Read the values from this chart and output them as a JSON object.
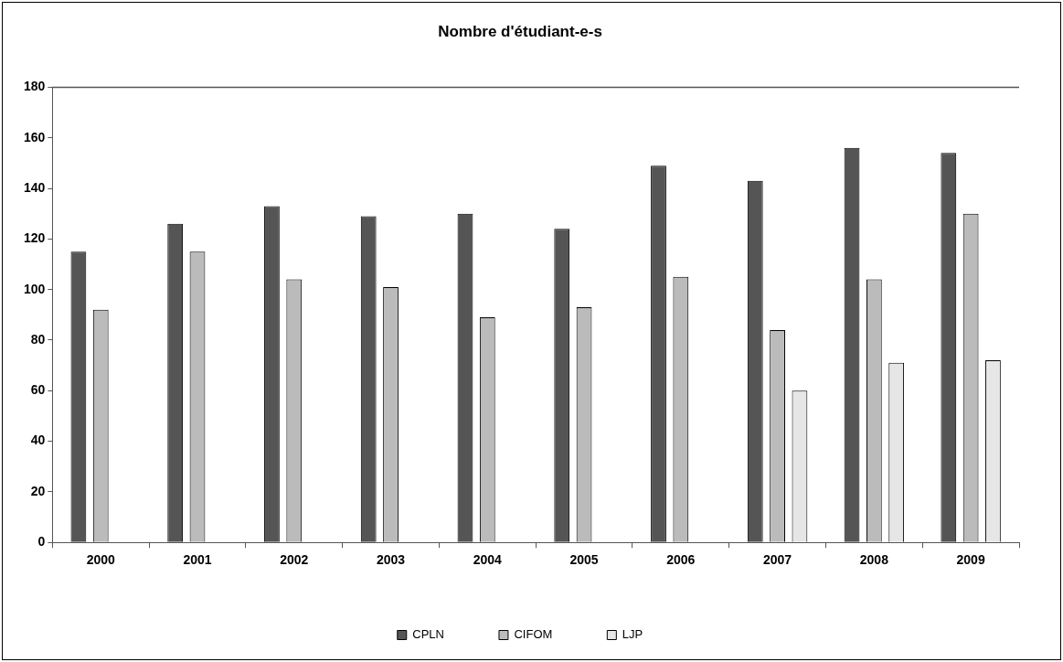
{
  "chart_data": {
    "type": "bar",
    "title": "Nombre d'étudiant-e-s",
    "categories": [
      "2000",
      "2001",
      "2002",
      "2003",
      "2004",
      "2005",
      "2006",
      "2007",
      "2008",
      "2009"
    ],
    "series": [
      {
        "name": "CPLN",
        "color": "#555555",
        "values": [
          115,
          126,
          133,
          129,
          130,
          124,
          149,
          143,
          156,
          154
        ]
      },
      {
        "name": "CIFOM",
        "color": "#bbbbbb",
        "values": [
          92,
          115,
          104,
          101,
          89,
          93,
          105,
          84,
          104,
          130
        ]
      },
      {
        "name": "LJP",
        "color": "#e6e6e6",
        "values": [
          null,
          null,
          null,
          null,
          null,
          null,
          null,
          60,
          71,
          72
        ]
      }
    ],
    "ylim": [
      0,
      180
    ],
    "yticks": [
      0,
      20,
      40,
      60,
      80,
      100,
      120,
      140,
      160,
      180
    ],
    "ref_lines": [
      {
        "axis": "y",
        "value": 180,
        "color": "#555555"
      }
    ],
    "grid": false,
    "legend": "bottom"
  }
}
